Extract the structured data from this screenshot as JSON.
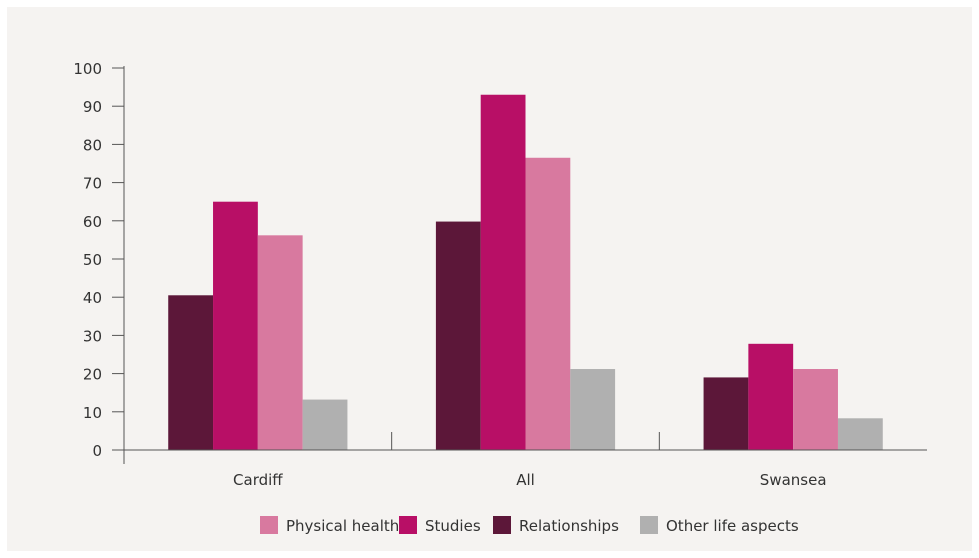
{
  "chart_data": {
    "type": "bar",
    "title": "",
    "xlabel": "",
    "ylabel": "",
    "ylim": [
      0,
      100
    ],
    "yticks": [
      0,
      10,
      20,
      30,
      40,
      50,
      60,
      70,
      80,
      90,
      100
    ],
    "grid": false,
    "legend_position": "bottom",
    "categories": [
      "Cardiff",
      "All",
      "Swansea"
    ],
    "series": [
      {
        "name": "Relationships",
        "color": "#5c1739",
        "values": [
          40.5,
          59.8,
          19
        ]
      },
      {
        "name": "Studies",
        "color": "#b80f66",
        "values": [
          65,
          93,
          27.8
        ]
      },
      {
        "name": "Physical health",
        "color": "#d8799f",
        "values": [
          56.2,
          76.5,
          21.2
        ]
      },
      {
        "name": "Other life aspects",
        "color": "#b0b0b0",
        "values": [
          13.2,
          21.2,
          8.3
        ]
      }
    ],
    "legend": [
      {
        "name": "Physical health",
        "color": "#d8799f"
      },
      {
        "name": "Studies",
        "color": "#b80f66"
      },
      {
        "name": "Relationships",
        "color": "#5c1739"
      },
      {
        "name": "Other life aspects",
        "color": "#b0b0b0"
      }
    ]
  }
}
